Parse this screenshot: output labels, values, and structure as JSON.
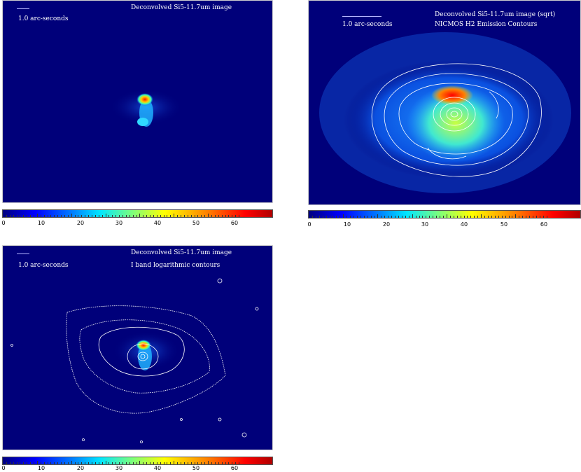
{
  "panels": [
    {
      "title_line1": "Deconvolved Si5-11.7um image",
      "title_line2": "",
      "scale_label": "1.0 arc-seconds"
    },
    {
      "title_line1": "Deconvolved Si5-11.7um image (sqrt)",
      "title_line2": "NICMOS H2 Emission Contours",
      "scale_label": "1.0 arc-seconds"
    },
    {
      "title_line1": "Deconvolved Si5-11.7um image",
      "title_line2": "I band logarithmic contours",
      "scale_label": "1.0 arc-seconds"
    }
  ],
  "colorbar": {
    "tick_labels": [
      "0",
      "10",
      "20",
      "30",
      "40",
      "50",
      "60"
    ],
    "range": [
      0,
      70
    ],
    "colormap": [
      "#00007f",
      "#0000ff",
      "#0080ff",
      "#00e5ff",
      "#7cff7c",
      "#ffff00",
      "#ff8000",
      "#ff0000"
    ]
  },
  "colors": {
    "background": "#00007a",
    "contour": "#ffffff"
  }
}
